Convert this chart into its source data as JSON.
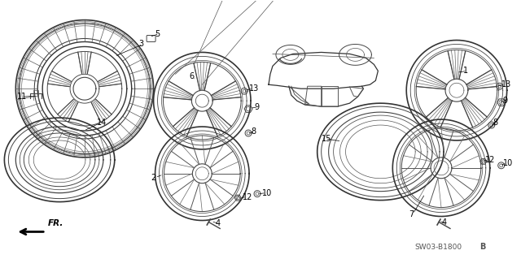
{
  "background_color": "#ffffff",
  "figsize": [
    6.4,
    3.19
  ],
  "dpi": 100,
  "diagram_code": "SW03-B1800 B"
}
